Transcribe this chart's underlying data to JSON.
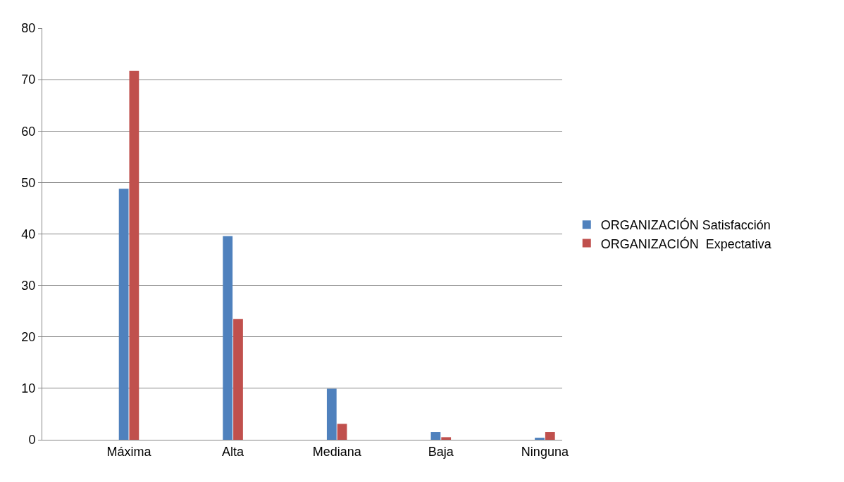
{
  "chart_data": {
    "type": "bar",
    "categories": [
      null,
      null,
      "Máxima",
      null,
      null,
      "Alta",
      null,
      null,
      "Mediana",
      null,
      null,
      "Baja",
      null,
      null,
      "Ninguna"
    ],
    "series": [
      {
        "name": "ORGANIZACIÓN Satisfacción",
        "color": "#4f81bd",
        "values": [
          null,
          null,
          48.8,
          null,
          null,
          39.6,
          null,
          null,
          9.9,
          null,
          null,
          1.5,
          null,
          null,
          0.4
        ]
      },
      {
        "name": "ORGANIZACIÓN  Expectativa",
        "color": "#c0504d",
        "values": [
          null,
          null,
          71.7,
          null,
          null,
          23.5,
          null,
          null,
          3.1,
          null,
          null,
          0.5,
          null,
          null,
          1.5
        ]
      }
    ],
    "ylim": [
      0,
      80
    ],
    "yticks": [
      0,
      10,
      20,
      30,
      40,
      50,
      60,
      70,
      80
    ],
    "grid": "y",
    "legend": "right"
  }
}
